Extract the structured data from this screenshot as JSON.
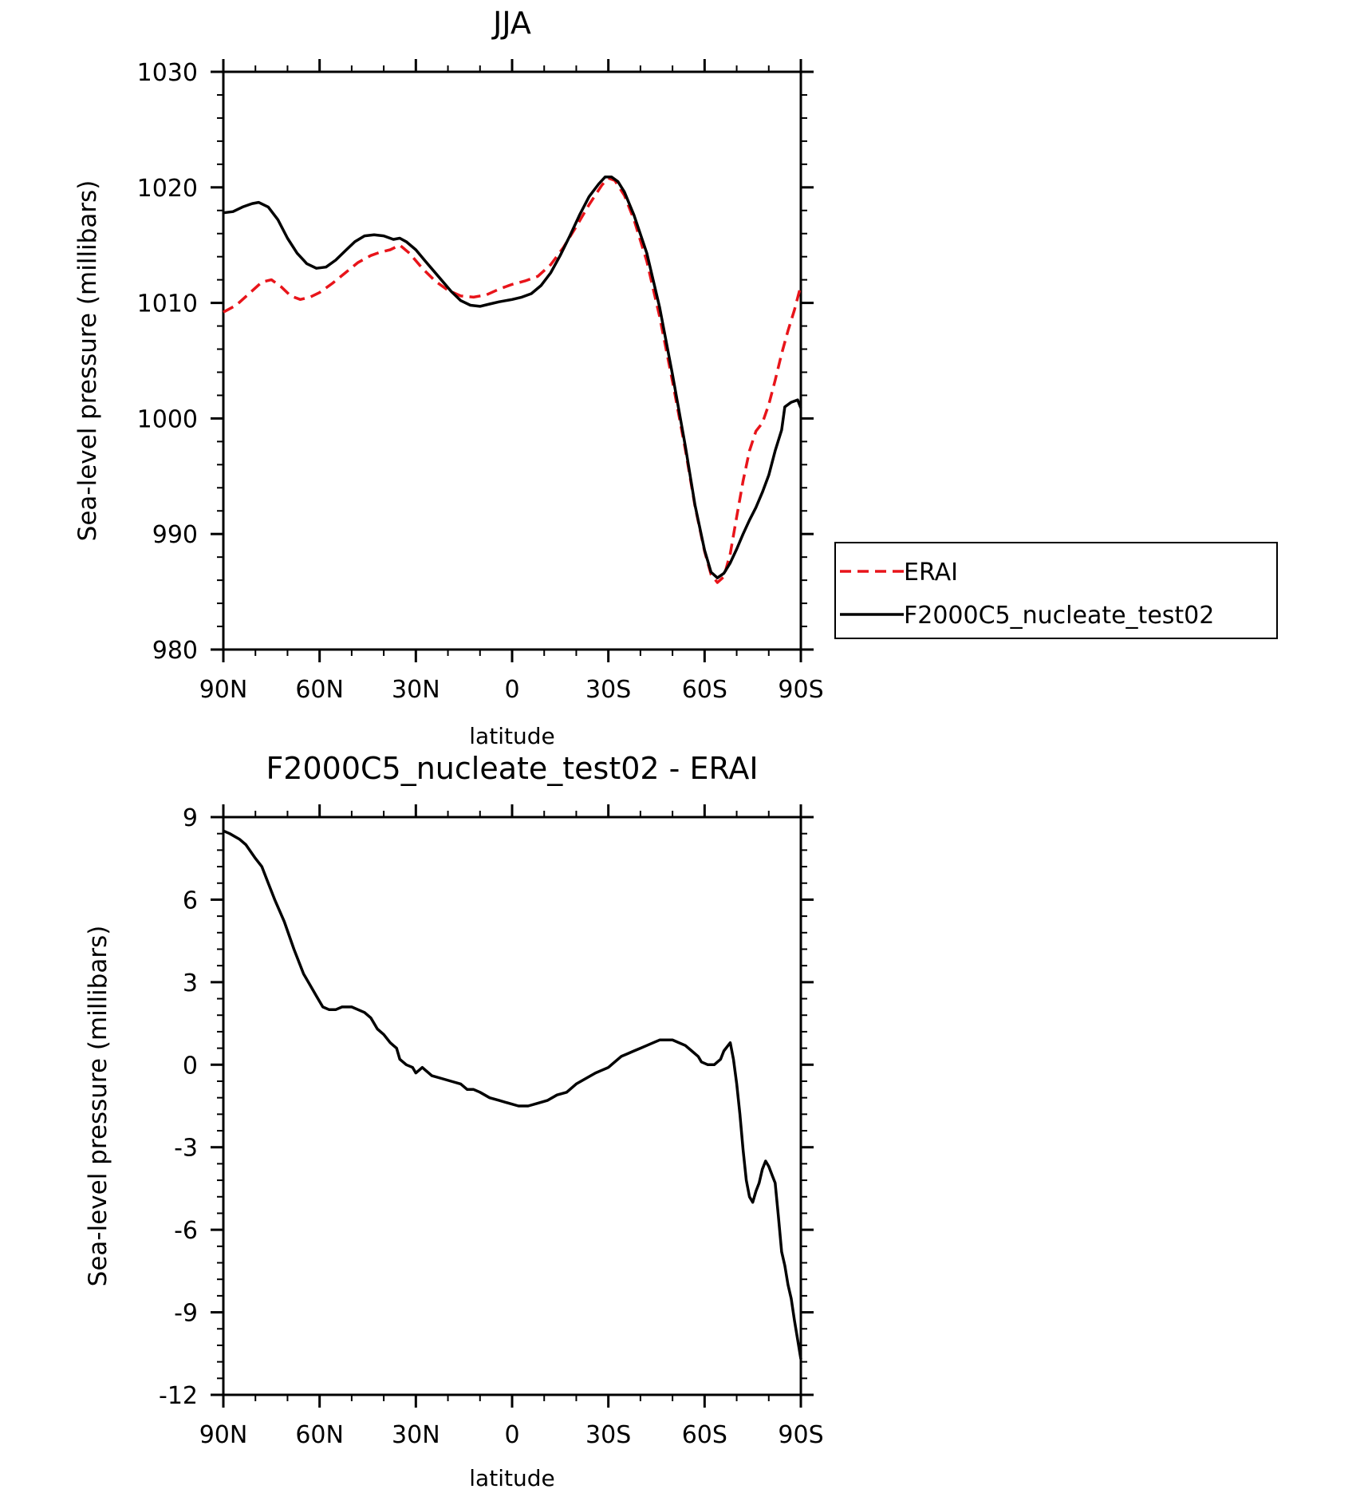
{
  "chart_data": [
    {
      "type": "line",
      "title": "JJA",
      "xlabel": "latitude",
      "ylabel": "Sea-level pressure (millibars)",
      "xlim": [
        90,
        -90
      ],
      "ylim": [
        980,
        1030
      ],
      "x_ticks": [
        90,
        60,
        30,
        0,
        -30,
        -60,
        -90
      ],
      "x_tick_labels": [
        "90N",
        "60N",
        "30N",
        "0",
        "30S",
        "60S",
        "90S"
      ],
      "y_ticks": [
        980,
        990,
        1000,
        1010,
        1020,
        1030
      ],
      "y_tick_labels": [
        "980",
        "990",
        "1000",
        "1010",
        "1020",
        "1030"
      ],
      "grid": false,
      "legend": "right",
      "series": [
        {
          "name": "ERAI",
          "color": "#e8141a",
          "dash": "dashed",
          "points": [
            [
              90,
              1009.2
            ],
            [
              86,
              1009.8
            ],
            [
              82,
              1010.8
            ],
            [
              78,
              1011.8
            ],
            [
              75,
              1012.0
            ],
            [
              72,
              1011.4
            ],
            [
              69,
              1010.6
            ],
            [
              66,
              1010.3
            ],
            [
              63,
              1010.5
            ],
            [
              60,
              1010.9
            ],
            [
              56,
              1011.7
            ],
            [
              52,
              1012.6
            ],
            [
              48,
              1013.5
            ],
            [
              44,
              1014.1
            ],
            [
              41,
              1014.4
            ],
            [
              38,
              1014.6
            ],
            [
              35,
              1015.0
            ],
            [
              32,
              1014.3
            ],
            [
              28,
              1013.0
            ],
            [
              24,
              1011.9
            ],
            [
              20,
              1011.1
            ],
            [
              16,
              1010.6
            ],
            [
              12,
              1010.5
            ],
            [
              8,
              1010.7
            ],
            [
              4,
              1011.2
            ],
            [
              0,
              1011.6
            ],
            [
              -4,
              1011.9
            ],
            [
              -8,
              1012.3
            ],
            [
              -12,
              1013.3
            ],
            [
              -16,
              1014.8
            ],
            [
              -20,
              1016.6
            ],
            [
              -24,
              1018.5
            ],
            [
              -28,
              1020.2
            ],
            [
              -30,
              1020.8
            ],
            [
              -32,
              1020.6
            ],
            [
              -35,
              1019.3
            ],
            [
              -38,
              1017.2
            ],
            [
              -42,
              1013.6
            ],
            [
              -46,
              1008.8
            ],
            [
              -50,
              1003.2
            ],
            [
              -54,
              997.3
            ],
            [
              -57,
              992.4
            ],
            [
              -60,
              988.5
            ],
            [
              -62,
              986.5
            ],
            [
              -64,
              985.8
            ],
            [
              -66,
              986.3
            ],
            [
              -68,
              988.3
            ],
            [
              -70,
              991.5
            ],
            [
              -72,
              994.6
            ],
            [
              -74,
              997.2
            ],
            [
              -76,
              998.9
            ],
            [
              -78,
              999.6
            ],
            [
              -80,
              1001.2
            ],
            [
              -82,
              1003.3
            ],
            [
              -84,
              1005.6
            ],
            [
              -86,
              1007.6
            ],
            [
              -88,
              1009.4
            ],
            [
              -90,
              1011.5
            ]
          ]
        },
        {
          "name": "F2000C5_nucleate_test02",
          "color": "#000000",
          "dash": "solid",
          "points": [
            [
              90,
              1017.8
            ],
            [
              87,
              1017.9
            ],
            [
              84,
              1018.3
            ],
            [
              81,
              1018.6
            ],
            [
              79,
              1018.7
            ],
            [
              76,
              1018.3
            ],
            [
              73,
              1017.2
            ],
            [
              70,
              1015.6
            ],
            [
              67,
              1014.3
            ],
            [
              64,
              1013.4
            ],
            [
              61,
              1013.0
            ],
            [
              58,
              1013.1
            ],
            [
              55,
              1013.7
            ],
            [
              52,
              1014.5
            ],
            [
              49,
              1015.3
            ],
            [
              46,
              1015.8
            ],
            [
              43,
              1015.9
            ],
            [
              40,
              1015.8
            ],
            [
              37,
              1015.5
            ],
            [
              35,
              1015.6
            ],
            [
              33,
              1015.3
            ],
            [
              30,
              1014.6
            ],
            [
              27,
              1013.6
            ],
            [
              23,
              1012.3
            ],
            [
              19,
              1011.0
            ],
            [
              16,
              1010.2
            ],
            [
              13,
              1009.8
            ],
            [
              10,
              1009.7
            ],
            [
              7,
              1009.9
            ],
            [
              4,
              1010.1
            ],
            [
              0,
              1010.3
            ],
            [
              -3,
              1010.5
            ],
            [
              -6,
              1010.8
            ],
            [
              -9,
              1011.5
            ],
            [
              -12,
              1012.6
            ],
            [
              -15,
              1014.1
            ],
            [
              -18,
              1015.8
            ],
            [
              -21,
              1017.6
            ],
            [
              -24,
              1019.2
            ],
            [
              -27,
              1020.3
            ],
            [
              -29,
              1020.9
            ],
            [
              -31,
              1020.9
            ],
            [
              -33,
              1020.5
            ],
            [
              -35,
              1019.6
            ],
            [
              -38,
              1017.6
            ],
            [
              -42,
              1014.3
            ],
            [
              -46,
              1009.6
            ],
            [
              -50,
              1003.8
            ],
            [
              -54,
              997.6
            ],
            [
              -57,
              992.5
            ],
            [
              -60,
              988.6
            ],
            [
              -62,
              986.7
            ],
            [
              -64,
              986.2
            ],
            [
              -66,
              986.6
            ],
            [
              -68,
              987.5
            ],
            [
              -70,
              988.7
            ],
            [
              -72,
              990.0
            ],
            [
              -74,
              991.2
            ],
            [
              -76,
              992.3
            ],
            [
              -78,
              993.6
            ],
            [
              -80,
              995.1
            ],
            [
              -82,
              997.2
            ],
            [
              -84,
              999.0
            ],
            [
              -85,
              1001.0
            ],
            [
              -87,
              1001.4
            ],
            [
              -89,
              1001.6
            ],
            [
              -90,
              1000.9
            ]
          ]
        }
      ]
    },
    {
      "type": "line",
      "title": "F2000C5_nucleate_test02 - ERAI",
      "xlabel": "latitude",
      "ylabel": "Sea-level pressure (millibars)",
      "xlim": [
        90,
        -90
      ],
      "ylim": [
        -12,
        9
      ],
      "x_ticks": [
        90,
        60,
        30,
        0,
        -30,
        -60,
        -90
      ],
      "x_tick_labels": [
        "90N",
        "60N",
        "30N",
        "0",
        "30S",
        "60S",
        "90S"
      ],
      "y_ticks": [
        -12,
        -9,
        -6,
        -3,
        0,
        3,
        6,
        9
      ],
      "y_tick_labels": [
        "-12",
        "-9",
        "-6",
        "-3",
        "0",
        "3",
        "6",
        "9"
      ],
      "grid": false,
      "series": [
        {
          "color": "#000000",
          "dash": "solid",
          "points": [
            [
              90,
              8.5
            ],
            [
              88,
              8.4
            ],
            [
              85,
              8.2
            ],
            [
              83,
              8.0
            ],
            [
              80,
              7.5
            ],
            [
              78,
              7.2
            ],
            [
              76,
              6.6
            ],
            [
              74,
              6.0
            ],
            [
              71,
              5.2
            ],
            [
              68,
              4.2
            ],
            [
              65,
              3.3
            ],
            [
              63,
              2.9
            ],
            [
              61,
              2.5
            ],
            [
              59,
              2.1
            ],
            [
              57,
              2.0
            ],
            [
              55,
              2.0
            ],
            [
              53,
              2.1
            ],
            [
              50,
              2.1
            ],
            [
              48,
              2.0
            ],
            [
              46,
              1.9
            ],
            [
              44,
              1.7
            ],
            [
              42,
              1.3
            ],
            [
              40,
              1.1
            ],
            [
              38,
              0.8
            ],
            [
              37,
              0.7
            ],
            [
              36,
              0.6
            ],
            [
              35,
              0.2
            ],
            [
              34,
              0.1
            ],
            [
              33,
              0.0
            ],
            [
              31,
              -0.1
            ],
            [
              30,
              -0.3
            ],
            [
              29,
              -0.2
            ],
            [
              28,
              -0.1
            ],
            [
              27,
              -0.2
            ],
            [
              25,
              -0.4
            ],
            [
              22,
              -0.5
            ],
            [
              19,
              -0.6
            ],
            [
              16,
              -0.7
            ],
            [
              14,
              -0.9
            ],
            [
              12,
              -0.9
            ],
            [
              10,
              -1.0
            ],
            [
              7,
              -1.2
            ],
            [
              4,
              -1.3
            ],
            [
              1,
              -1.4
            ],
            [
              -2,
              -1.5
            ],
            [
              -5,
              -1.5
            ],
            [
              -8,
              -1.4
            ],
            [
              -11,
              -1.3
            ],
            [
              -14,
              -1.1
            ],
            [
              -17,
              -1.0
            ],
            [
              -20,
              -0.7
            ],
            [
              -23,
              -0.5
            ],
            [
              -26,
              -0.3
            ],
            [
              -28,
              -0.2
            ],
            [
              -30,
              -0.1
            ],
            [
              -32,
              0.1
            ],
            [
              -34,
              0.3
            ],
            [
              -36,
              0.4
            ],
            [
              -38,
              0.5
            ],
            [
              -40,
              0.6
            ],
            [
              -42,
              0.7
            ],
            [
              -44,
              0.8
            ],
            [
              -46,
              0.9
            ],
            [
              -48,
              0.9
            ],
            [
              -50,
              0.9
            ],
            [
              -52,
              0.8
            ],
            [
              -54,
              0.7
            ],
            [
              -56,
              0.5
            ],
            [
              -58,
              0.3
            ],
            [
              -59,
              0.1
            ],
            [
              -61,
              0.0
            ],
            [
              -63,
              0.0
            ],
            [
              -65,
              0.2
            ],
            [
              -66,
              0.5
            ],
            [
              -68,
              0.8
            ],
            [
              -69,
              0.2
            ],
            [
              -70,
              -0.7
            ],
            [
              -71,
              -1.8
            ],
            [
              -72,
              -3.1
            ],
            [
              -73,
              -4.2
            ],
            [
              -74,
              -4.8
            ],
            [
              -75,
              -5.0
            ],
            [
              -76,
              -4.6
            ],
            [
              -77,
              -4.3
            ],
            [
              -78,
              -3.8
            ],
            [
              -79,
              -3.5
            ],
            [
              -80,
              -3.7
            ],
            [
              -81,
              -4.0
            ],
            [
              -82,
              -4.3
            ],
            [
              -83,
              -5.5
            ],
            [
              -84,
              -6.8
            ],
            [
              -85,
              -7.3
            ],
            [
              -86,
              -8.0
            ],
            [
              -87,
              -8.5
            ],
            [
              -88,
              -9.3
            ],
            [
              -89,
              -10.0
            ],
            [
              -90,
              -10.7
            ]
          ]
        }
      ]
    }
  ]
}
